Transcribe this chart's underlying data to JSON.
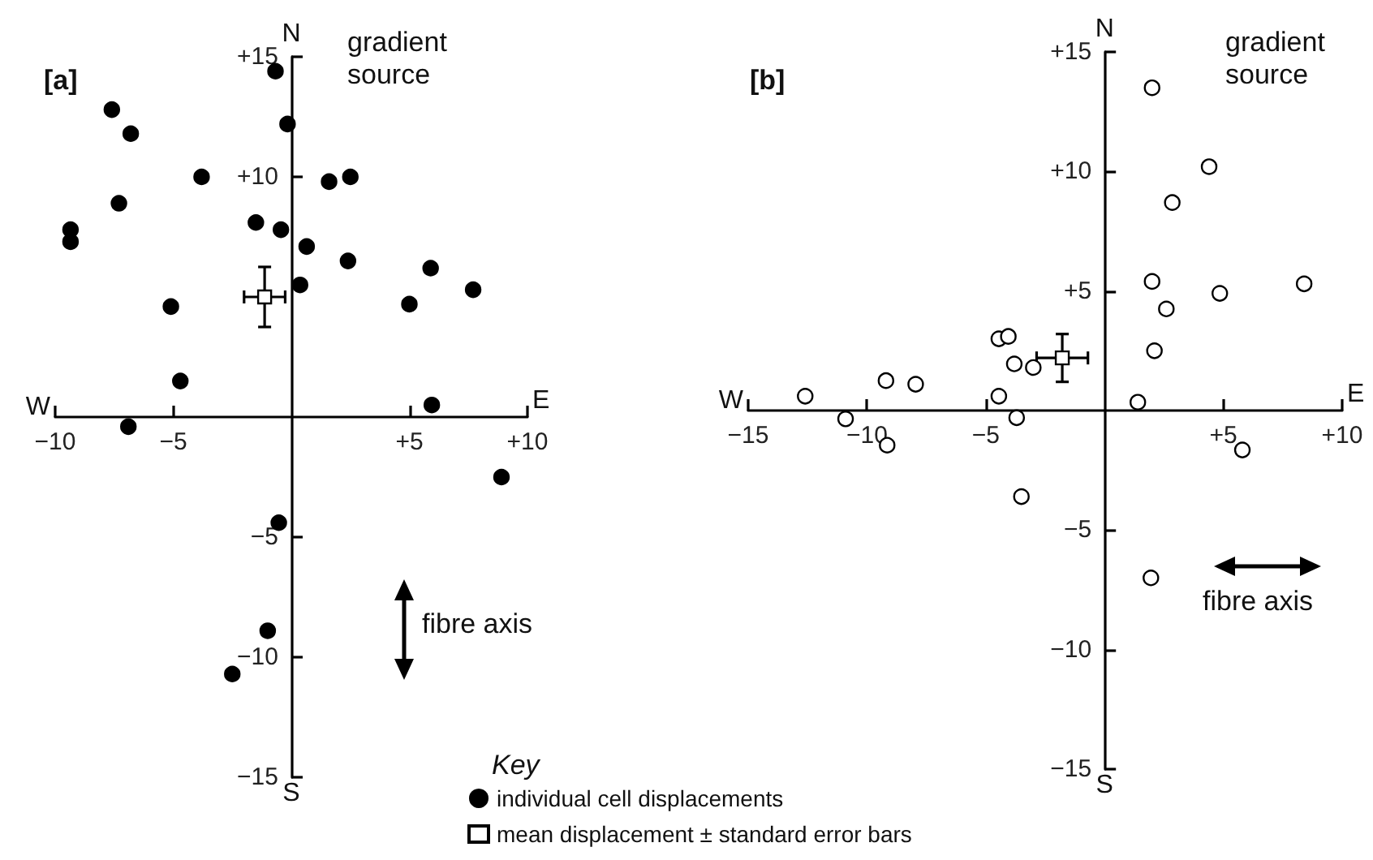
{
  "chart_data": [
    {
      "type": "scatter",
      "title": "[a]",
      "legend_title": "Key",
      "legend": "bottom",
      "grid": false,
      "marker": "circle",
      "xlim": [
        -10,
        10
      ],
      "ylim": [
        -15,
        15
      ],
      "xticks": [
        {
          "value": -10,
          "label": "−10"
        },
        {
          "value": -5,
          "label": "−5"
        },
        {
          "value": 5,
          "label": "+5"
        },
        {
          "value": 10,
          "label": "+10"
        }
      ],
      "yticks": [
        {
          "value": -15,
          "label": "−15"
        },
        {
          "value": -10,
          "label": "−10"
        },
        {
          "value": -5,
          "label": "−5"
        },
        {
          "value": 10,
          "label": "+10"
        },
        {
          "value": 15,
          "label": "+15"
        }
      ],
      "annotations": [
        "N",
        "S",
        "W",
        "E",
        "gradient source",
        "fibre axis"
      ],
      "series": [
        {
          "name": "individual cell displacements",
          "color": "#000000",
          "x": [
            -0.67,
            -7.6,
            -6.8,
            -0.16,
            -3.8,
            1.6,
            2.5,
            -7.3,
            -9.35,
            -9.35,
            -1.5,
            -0.44,
            0.65,
            2.4,
            5.9,
            0.37,
            7.7,
            -5.1,
            5.0,
            -4.7,
            5.95,
            -6.9,
            8.9,
            -0.53,
            -1.0,
            -2.5
          ],
          "values": [
            14.4,
            12.8,
            11.8,
            12.2,
            10.0,
            9.8,
            10.0,
            8.9,
            7.8,
            7.3,
            8.1,
            7.8,
            7.1,
            6.5,
            6.2,
            5.5,
            5.3,
            4.6,
            4.7,
            1.5,
            0.5,
            -0.4,
            -2.5,
            -4.4,
            -8.9,
            -10.7
          ]
        },
        {
          "name": "mean displacement ± standard error bars",
          "color": "#ffffff",
          "marker": "square",
          "x": [
            -1.13
          ],
          "values": [
            5.0
          ],
          "errors": [
            1.25
          ],
          "xerrors": [
            0.87
          ]
        }
      ]
    },
    {
      "type": "scatter",
      "title": "[b]",
      "grid": false,
      "marker": "circle",
      "xlim": [
        -15,
        10
      ],
      "ylim": [
        -15,
        15
      ],
      "xticks": [
        {
          "value": -15,
          "label": "−15"
        },
        {
          "value": -10,
          "label": "−10"
        },
        {
          "value": -5,
          "label": "−5"
        },
        {
          "value": 5,
          "label": "+5"
        },
        {
          "value": 10,
          "label": "+10"
        }
      ],
      "yticks": [
        {
          "value": -15,
          "label": "−15"
        },
        {
          "value": -10,
          "label": "−10"
        },
        {
          "value": -5,
          "label": "−5"
        },
        {
          "value": 5,
          "label": "+5"
        },
        {
          "value": 10,
          "label": "+10"
        },
        {
          "value": 15,
          "label": "+15"
        }
      ],
      "annotations": [
        "N",
        "S",
        "W",
        "E",
        "gradient source",
        "fibre axis"
      ],
      "series": [
        {
          "color": "#ffffff",
          "x": [
            2.0,
            4.4,
            2.85,
            2.0,
            4.85,
            8.4,
            2.6,
            2.1,
            1.4,
            5.8,
            -4.45,
            -4.05,
            -3.8,
            -3.0,
            -4.45,
            -3.7,
            -9.2,
            -7.95,
            -12.6,
            -10.9,
            -9.15,
            -3.5,
            1.95
          ],
          "values": [
            13.5,
            10.2,
            8.7,
            5.4,
            4.9,
            5.3,
            4.25,
            2.5,
            0.35,
            -1.65,
            3.0,
            3.1,
            1.95,
            1.8,
            0.6,
            -0.3,
            1.25,
            1.1,
            0.6,
            -0.35,
            -1.45,
            -3.6,
            -7.0
          ]
        },
        {
          "color": "#ffffff",
          "marker": "square",
          "x": [
            -1.78
          ],
          "values": [
            2.2
          ],
          "errors": [
            1.0
          ],
          "xerrors": [
            1.08
          ]
        }
      ]
    }
  ]
}
